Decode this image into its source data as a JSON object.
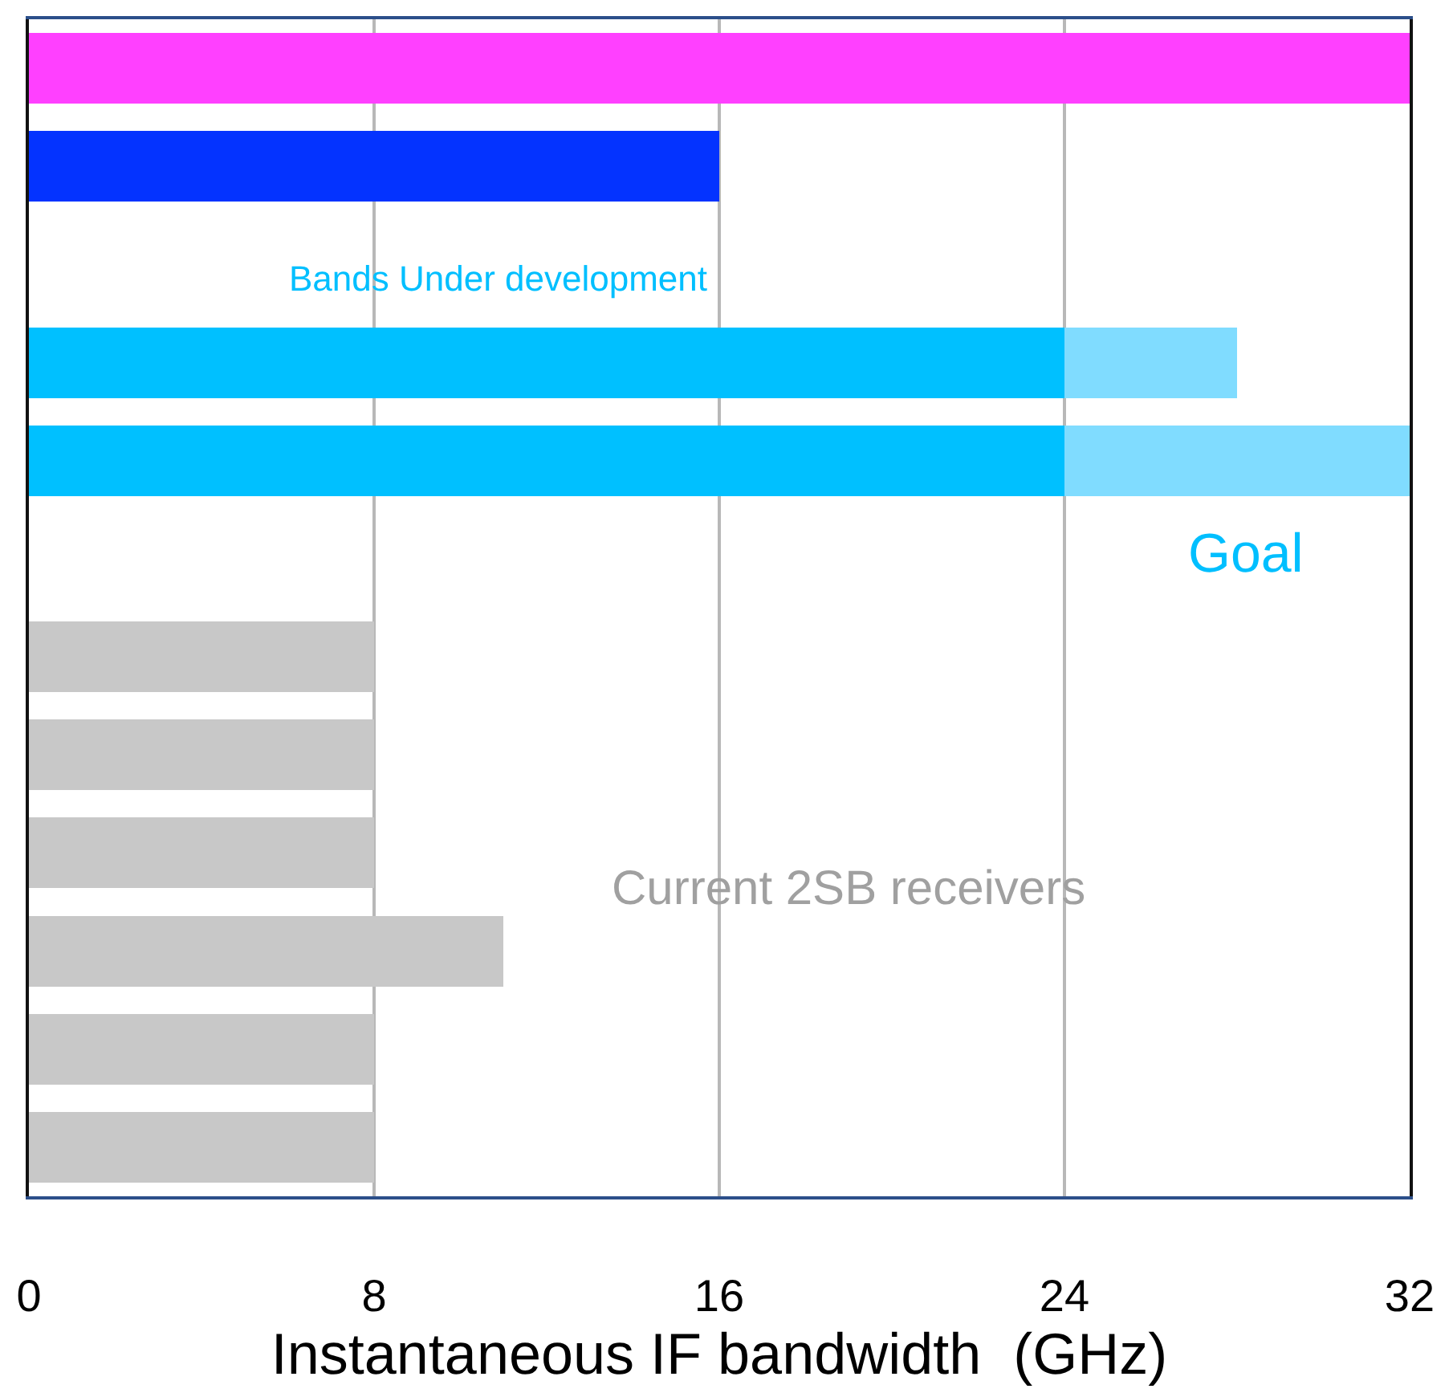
{
  "chart_data": {
    "type": "bar",
    "orientation": "horizontal",
    "stacked": true,
    "categories": [
      null,
      null,
      null,
      null,
      null,
      null,
      null,
      null,
      null,
      null,
      null,
      null
    ],
    "series": [
      {
        "colors": [
          "#ff40ff",
          "#0433ff",
          null,
          "#00c0ff",
          "#00c0ff",
          null,
          "#c8c8c8",
          "#c8c8c8",
          "#c8c8c8",
          "#c8c8c8",
          "#c8c8c8",
          "#c8c8c8"
        ],
        "values": [
          32,
          16,
          null,
          24,
          24,
          null,
          8,
          8,
          8,
          11,
          8,
          8
        ]
      },
      {
        "colors": [
          null,
          null,
          null,
          "#80dcff",
          "#80dcff",
          null,
          null,
          null,
          null,
          null,
          null,
          null
        ],
        "values": [
          null,
          null,
          null,
          4,
          8,
          null,
          null,
          null,
          null,
          null,
          null,
          null
        ]
      }
    ],
    "xlabel": "Instantaneous IF bandwidth  (GHz)",
    "xlim": [
      0,
      32
    ],
    "xticks": [
      0,
      8,
      16,
      24,
      32
    ],
    "grid": "x",
    "tick_labels": "x",
    "annotations": [
      "Bands Under development",
      "Goal",
      "Current 2SB receivers"
    ]
  }
}
